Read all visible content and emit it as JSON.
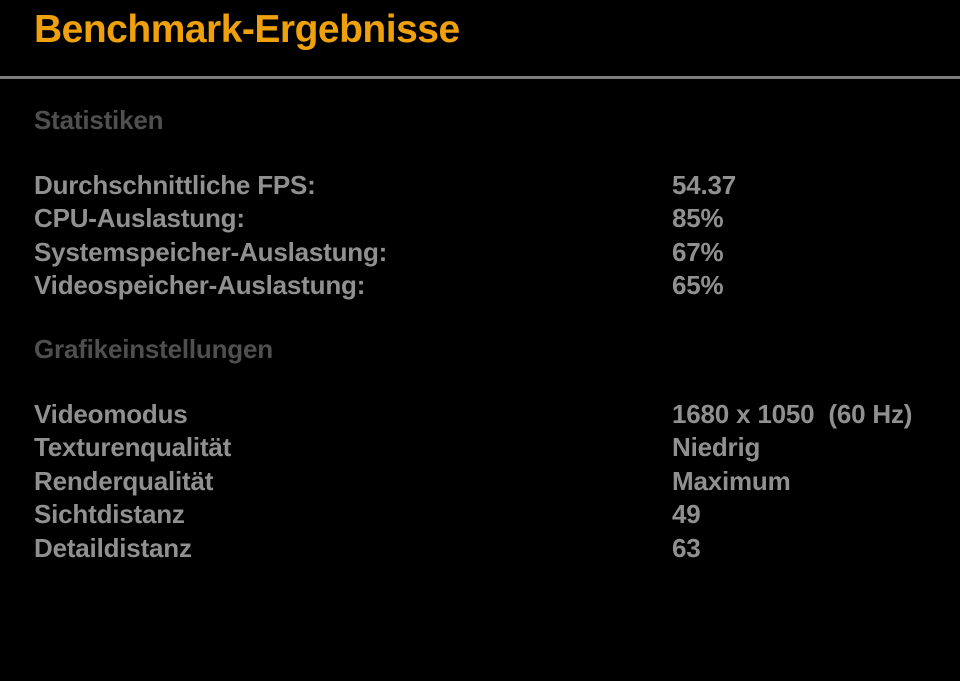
{
  "page": {
    "title": "Benchmark-Ergebnisse"
  },
  "colors": {
    "background": "#000000",
    "title_color": "#EEA10C",
    "divider_color": "#7D7D7D",
    "section_header_color": "#4F4F4F",
    "row_text_color": "#909090"
  },
  "sections": [
    {
      "header": "Statistiken",
      "rows": [
        {
          "label": "Durchschnittliche FPS:",
          "value": "54.37"
        },
        {
          "label": "CPU-Auslastung:",
          "value": "85%"
        },
        {
          "label": "Systemspeicher-Auslastung:",
          "value": "67%"
        },
        {
          "label": "Videospeicher-Auslastung:",
          "value": "65%"
        }
      ]
    },
    {
      "header": "Grafikeinstellungen",
      "rows": [
        {
          "label": "Videomodus",
          "value": "1680 x 1050  (60 Hz)"
        },
        {
          "label": "Texturenqualität",
          "value": "Niedrig"
        },
        {
          "label": "Renderqualität",
          "value": "Maximum"
        },
        {
          "label": "Sichtdistanz",
          "value": "49"
        },
        {
          "label": "Detaildistanz",
          "value": "63"
        }
      ]
    }
  ]
}
